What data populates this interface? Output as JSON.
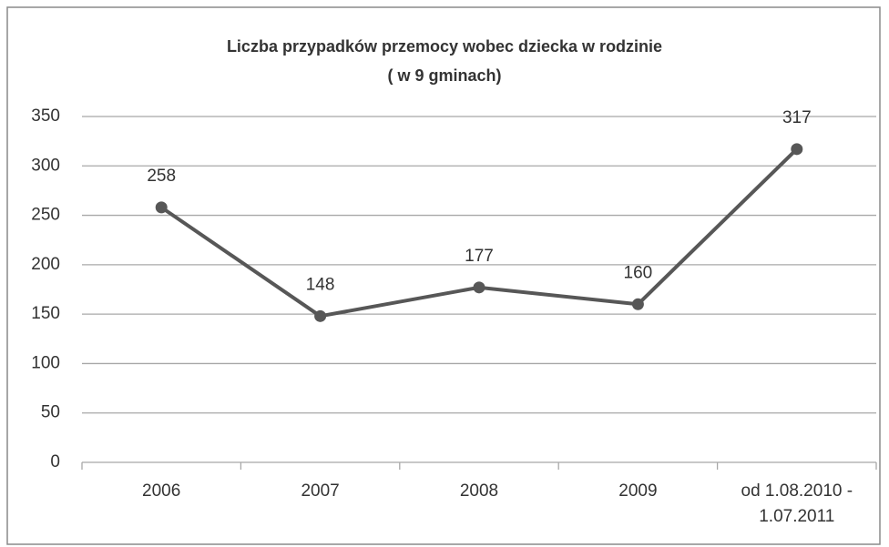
{
  "chart_data": {
    "type": "line",
    "title": "Liczba przypadków przemocy wobec dziecka w rodzinie",
    "subtitle": "( w 9 gminach)",
    "categories": [
      "2006",
      "2007",
      "2008",
      "2009",
      "od 1.08.2010 - 1.07.2011"
    ],
    "series": [
      {
        "name": "Liczba przypadków",
        "color": "#575757",
        "values": [
          258,
          148,
          177,
          160,
          317
        ]
      }
    ],
    "ylim": [
      0,
      350
    ],
    "yticks": [
      0,
      50,
      100,
      150,
      200,
      250,
      300,
      350
    ],
    "grid": true
  }
}
